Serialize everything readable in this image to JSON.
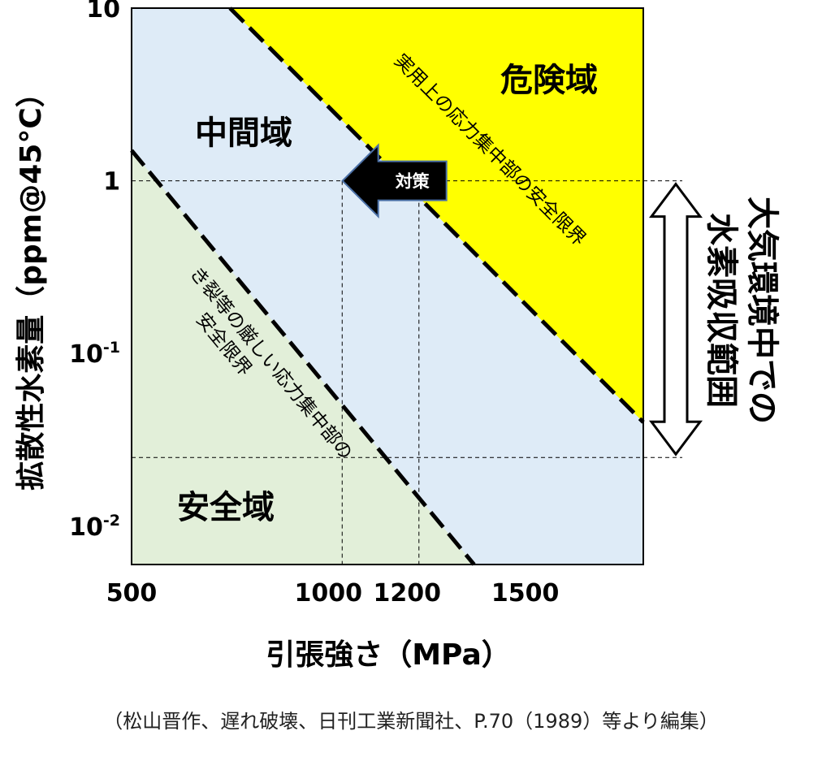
{
  "chart_data": {
    "type": "area",
    "x_axis": {
      "scale": "linear",
      "range": [
        500,
        1800
      ],
      "ticks": [
        500,
        1000,
        1200,
        1500
      ],
      "tick_labels": [
        "500",
        "1000",
        "1200",
        "1500"
      ],
      "label": "引張強さ（MPa）"
    },
    "y_axis": {
      "scale": "log",
      "range": [
        0.006,
        10
      ],
      "ticks": [
        10,
        1,
        0.1,
        0.01
      ],
      "tick_labels": [
        {
          "base": "10",
          "exp": ""
        },
        {
          "base": "1",
          "exp": ""
        },
        {
          "base": "10",
          "exp": "-1"
        },
        {
          "base": "10",
          "exp": "-2"
        }
      ],
      "label": "拡散性水素量（ppm@45°C）"
    },
    "regions": [
      {
        "label": "危険域",
        "color": "#ffff00"
      },
      {
        "label": "中間域",
        "color": "#deebf7"
      },
      {
        "label": "安全域",
        "color": "#e2efd9"
      }
    ],
    "boundaries": [
      {
        "label": "実用上の応力集中部の安全限界",
        "points": [
          [
            750,
            10
          ],
          [
            1800,
            0.04
          ]
        ]
      },
      {
        "label_lines": [
          "き裂等の厳しい応力集中部の",
          "安全限界"
        ],
        "points": [
          [
            500,
            1.5
          ],
          [
            1370,
            0.006
          ]
        ]
      }
    ],
    "reference_lines": [
      {
        "y": 1
      },
      {
        "y": 0.025
      },
      {
        "x": 1035
      },
      {
        "x": 1230
      }
    ],
    "arrow_annotation": {
      "label": "対策",
      "from_x": 1300,
      "to_x": 1040,
      "y": 1
    },
    "range_annotation": {
      "label_lines": [
        "大気環境中での",
        "水素吸収範囲"
      ],
      "y_range": [
        0.025,
        1
      ]
    },
    "grid": false
  },
  "caption": "（松山晋作、遅れ破壊、日刊工業新聞社、P.70（1989）等より編集）"
}
